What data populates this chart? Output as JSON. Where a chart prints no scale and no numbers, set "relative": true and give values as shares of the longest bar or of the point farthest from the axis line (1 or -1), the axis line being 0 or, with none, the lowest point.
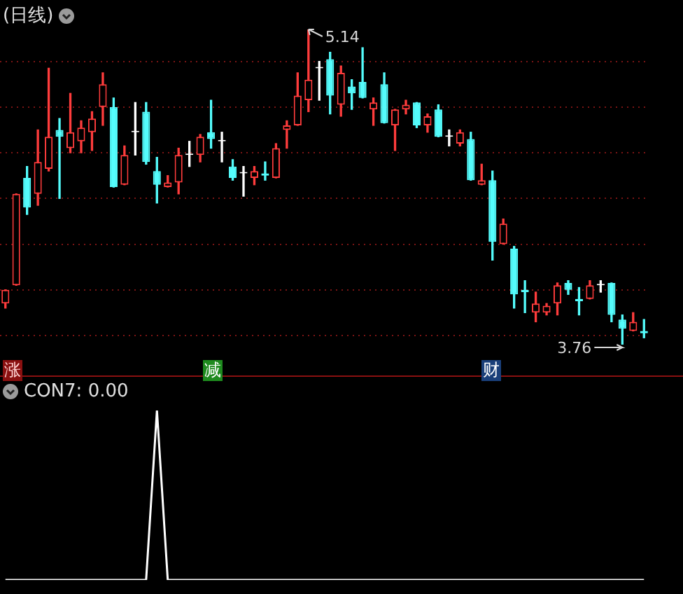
{
  "chart_data": [
    {
      "type": "candlestick",
      "title": "(日线)",
      "categories": [
        null,
        null,
        null,
        null,
        null,
        null,
        null,
        null,
        null,
        null,
        null,
        null,
        null,
        null,
        null,
        null,
        null,
        null,
        null,
        null,
        null,
        null,
        null,
        null,
        null,
        null,
        null,
        null,
        null,
        null,
        null,
        null,
        null,
        null,
        null,
        null,
        null,
        null,
        null,
        null,
        null,
        null,
        null,
        null,
        null,
        null,
        null,
        null,
        null,
        null,
        null,
        null,
        null,
        null,
        null,
        null,
        null,
        null,
        null,
        null
      ],
      "ohlc": [
        [
          3.94,
          4.0,
          3.92,
          4.0
        ],
        [
          4.02,
          4.42,
          4.02,
          4.42
        ],
        [
          4.49,
          4.54,
          4.33,
          4.36
        ],
        [
          4.42,
          4.7,
          4.37,
          4.56
        ],
        [
          4.53,
          4.97,
          4.52,
          4.67
        ],
        [
          4.7,
          4.75,
          4.4,
          4.67
        ],
        [
          4.62,
          4.86,
          4.6,
          4.69
        ],
        [
          4.65,
          4.74,
          4.6,
          4.71
        ],
        [
          4.69,
          4.78,
          4.61,
          4.75
        ],
        [
          4.8,
          4.95,
          4.72,
          4.9
        ],
        [
          4.8,
          4.84,
          4.45,
          4.45
        ],
        [
          4.46,
          4.63,
          4.46,
          4.59
        ],
        [
          4.69,
          4.82,
          4.59,
          4.69
        ],
        [
          4.78,
          4.82,
          4.55,
          4.56
        ],
        [
          4.52,
          4.58,
          4.38,
          4.46
        ],
        [
          4.45,
          4.5,
          4.45,
          4.47
        ],
        [
          4.47,
          4.62,
          4.42,
          4.59
        ],
        [
          4.59,
          4.65,
          4.54,
          4.59
        ],
        [
          4.59,
          4.68,
          4.56,
          4.67
        ],
        [
          4.69,
          4.83,
          4.62,
          4.66
        ],
        [
          4.65,
          4.69,
          4.56,
          4.65
        ],
        [
          4.54,
          4.57,
          4.48,
          4.49
        ],
        [
          4.51,
          4.54,
          4.41,
          4.51
        ],
        [
          4.49,
          4.54,
          4.46,
          4.52
        ],
        [
          4.51,
          4.56,
          4.48,
          4.5
        ],
        [
          4.49,
          4.64,
          4.49,
          4.62
        ],
        [
          4.7,
          4.74,
          4.62,
          4.72
        ],
        [
          4.72,
          4.95,
          4.72,
          4.85
        ],
        [
          4.83,
          5.14,
          4.78,
          4.92
        ],
        [
          4.97,
          5.0,
          4.83,
          4.97
        ],
        [
          5.01,
          5.04,
          4.77,
          4.85
        ],
        [
          4.81,
          4.98,
          4.76,
          4.95
        ],
        [
          4.89,
          4.92,
          4.79,
          4.86
        ],
        [
          4.91,
          5.06,
          4.84,
          4.84
        ],
        [
          4.79,
          4.84,
          4.72,
          4.82
        ],
        [
          4.9,
          4.95,
          4.73,
          4.73
        ],
        [
          4.72,
          4.79,
          4.61,
          4.79
        ],
        [
          4.79,
          4.83,
          4.77,
          4.81
        ],
        [
          4.82,
          4.82,
          4.71,
          4.72
        ],
        [
          4.72,
          4.77,
          4.69,
          4.76
        ],
        [
          4.79,
          4.81,
          4.67,
          4.67
        ],
        [
          4.67,
          4.7,
          4.63,
          4.67
        ],
        [
          4.64,
          4.7,
          4.63,
          4.69
        ],
        [
          4.66,
          4.69,
          4.48,
          4.48
        ],
        [
          4.46,
          4.55,
          4.46,
          4.48
        ],
        [
          4.48,
          4.52,
          4.13,
          4.21
        ],
        [
          4.2,
          4.31,
          4.2,
          4.29
        ],
        [
          4.18,
          4.19,
          3.92,
          3.98
        ],
        [
          4.0,
          4.04,
          3.9,
          3.99
        ],
        [
          3.9,
          3.99,
          3.86,
          3.94
        ],
        [
          3.9,
          3.94,
          3.89,
          3.93
        ],
        [
          3.94,
          4.03,
          3.89,
          4.02
        ],
        [
          4.03,
          4.04,
          3.98,
          4.0
        ],
        [
          3.96,
          4.01,
          3.89,
          3.95
        ],
        [
          3.96,
          4.04,
          3.96,
          4.02
        ],
        [
          4.02,
          4.04,
          3.99,
          4.02
        ],
        [
          4.03,
          4.03,
          3.86,
          3.89
        ],
        [
          3.87,
          3.89,
          3.76,
          3.83
        ],
        [
          3.82,
          3.9,
          3.82,
          3.86
        ],
        [
          3.82,
          3.87,
          3.79,
          3.81
        ]
      ],
      "colors": [
        "#ff3c3c",
        "#ff3c3c",
        "#54fcfc",
        "#ff3c3c",
        "#ff3c3c",
        "#54fcfc",
        "#ff3c3c",
        "#ff3c3c",
        "#ff3c3c",
        "#ff3c3c",
        "#54fcfc",
        "#ff3c3c",
        "#ffffff",
        "#54fcfc",
        "#54fcfc",
        "#ff3c3c",
        "#ff3c3c",
        "#ffffff",
        "#ff3c3c",
        "#54fcfc",
        "#ffffff",
        "#54fcfc",
        "#ffffff",
        "#ff3c3c",
        "#54fcfc",
        "#ff3c3c",
        "#ff3c3c",
        "#ff3c3c",
        "#ff3c3c",
        "#ffffff",
        "#54fcfc",
        "#ff3c3c",
        "#54fcfc",
        "#54fcfc",
        "#ff3c3c",
        "#54fcfc",
        "#ff3c3c",
        "#ff3c3c",
        "#54fcfc",
        "#ff3c3c",
        "#54fcfc",
        "#ffffff",
        "#ff3c3c",
        "#54fcfc",
        "#ff3c3c",
        "#54fcfc",
        "#ff3c3c",
        "#54fcfc",
        "#54fcfc",
        "#ff3c3c",
        "#ff3c3c",
        "#ff3c3c",
        "#54fcfc",
        "#54fcfc",
        "#ff3c3c",
        "#ffffff",
        "#54fcfc",
        "#54fcfc",
        "#ff3c3c",
        "#54fcfc"
      ],
      "yticks": [
        {
          "value": 3.8,
          "label": null
        },
        {
          "value": 4.0,
          "label": null
        },
        {
          "value": 4.2,
          "label": null
        },
        {
          "value": 4.4,
          "label": null
        },
        {
          "value": 4.6,
          "label": null
        },
        {
          "value": 4.8,
          "label": null
        },
        {
          "value": 5.0,
          "label": null
        }
      ],
      "grid": "y",
      "tick_labels": false,
      "legend": false,
      "annotations": [
        "5.14",
        "3.76",
        "涨",
        "减",
        "财"
      ]
    },
    {
      "type": "line",
      "title": "CON7: 0.00",
      "relative": true,
      "tick_labels": false,
      "legend": false,
      "categories": [
        null,
        null,
        null,
        null,
        null,
        null,
        null,
        null,
        null,
        null,
        null,
        null,
        null,
        null,
        null,
        null,
        null,
        null,
        null,
        null,
        null,
        null,
        null,
        null,
        null,
        null,
        null,
        null,
        null,
        null,
        null,
        null,
        null,
        null,
        null,
        null,
        null,
        null,
        null,
        null,
        null,
        null,
        null,
        null,
        null,
        null,
        null,
        null,
        null,
        null,
        null,
        null,
        null,
        null,
        null,
        null,
        null,
        null,
        null,
        null
      ],
      "series": [
        {
          "color": "#ffffff",
          "values": [
            0,
            0,
            0,
            0,
            0,
            0,
            0,
            0,
            0,
            0,
            0,
            0,
            0,
            0,
            1,
            0,
            0,
            0,
            0,
            0,
            0,
            0,
            0,
            0,
            0,
            0,
            0,
            0,
            0,
            0,
            0,
            0,
            0,
            0,
            0,
            0,
            0,
            0,
            0,
            0,
            0,
            0,
            0,
            0,
            0,
            0,
            0,
            0,
            0,
            0,
            0,
            0,
            0,
            0,
            0,
            0,
            0,
            0,
            0,
            0
          ]
        }
      ]
    }
  ]
}
